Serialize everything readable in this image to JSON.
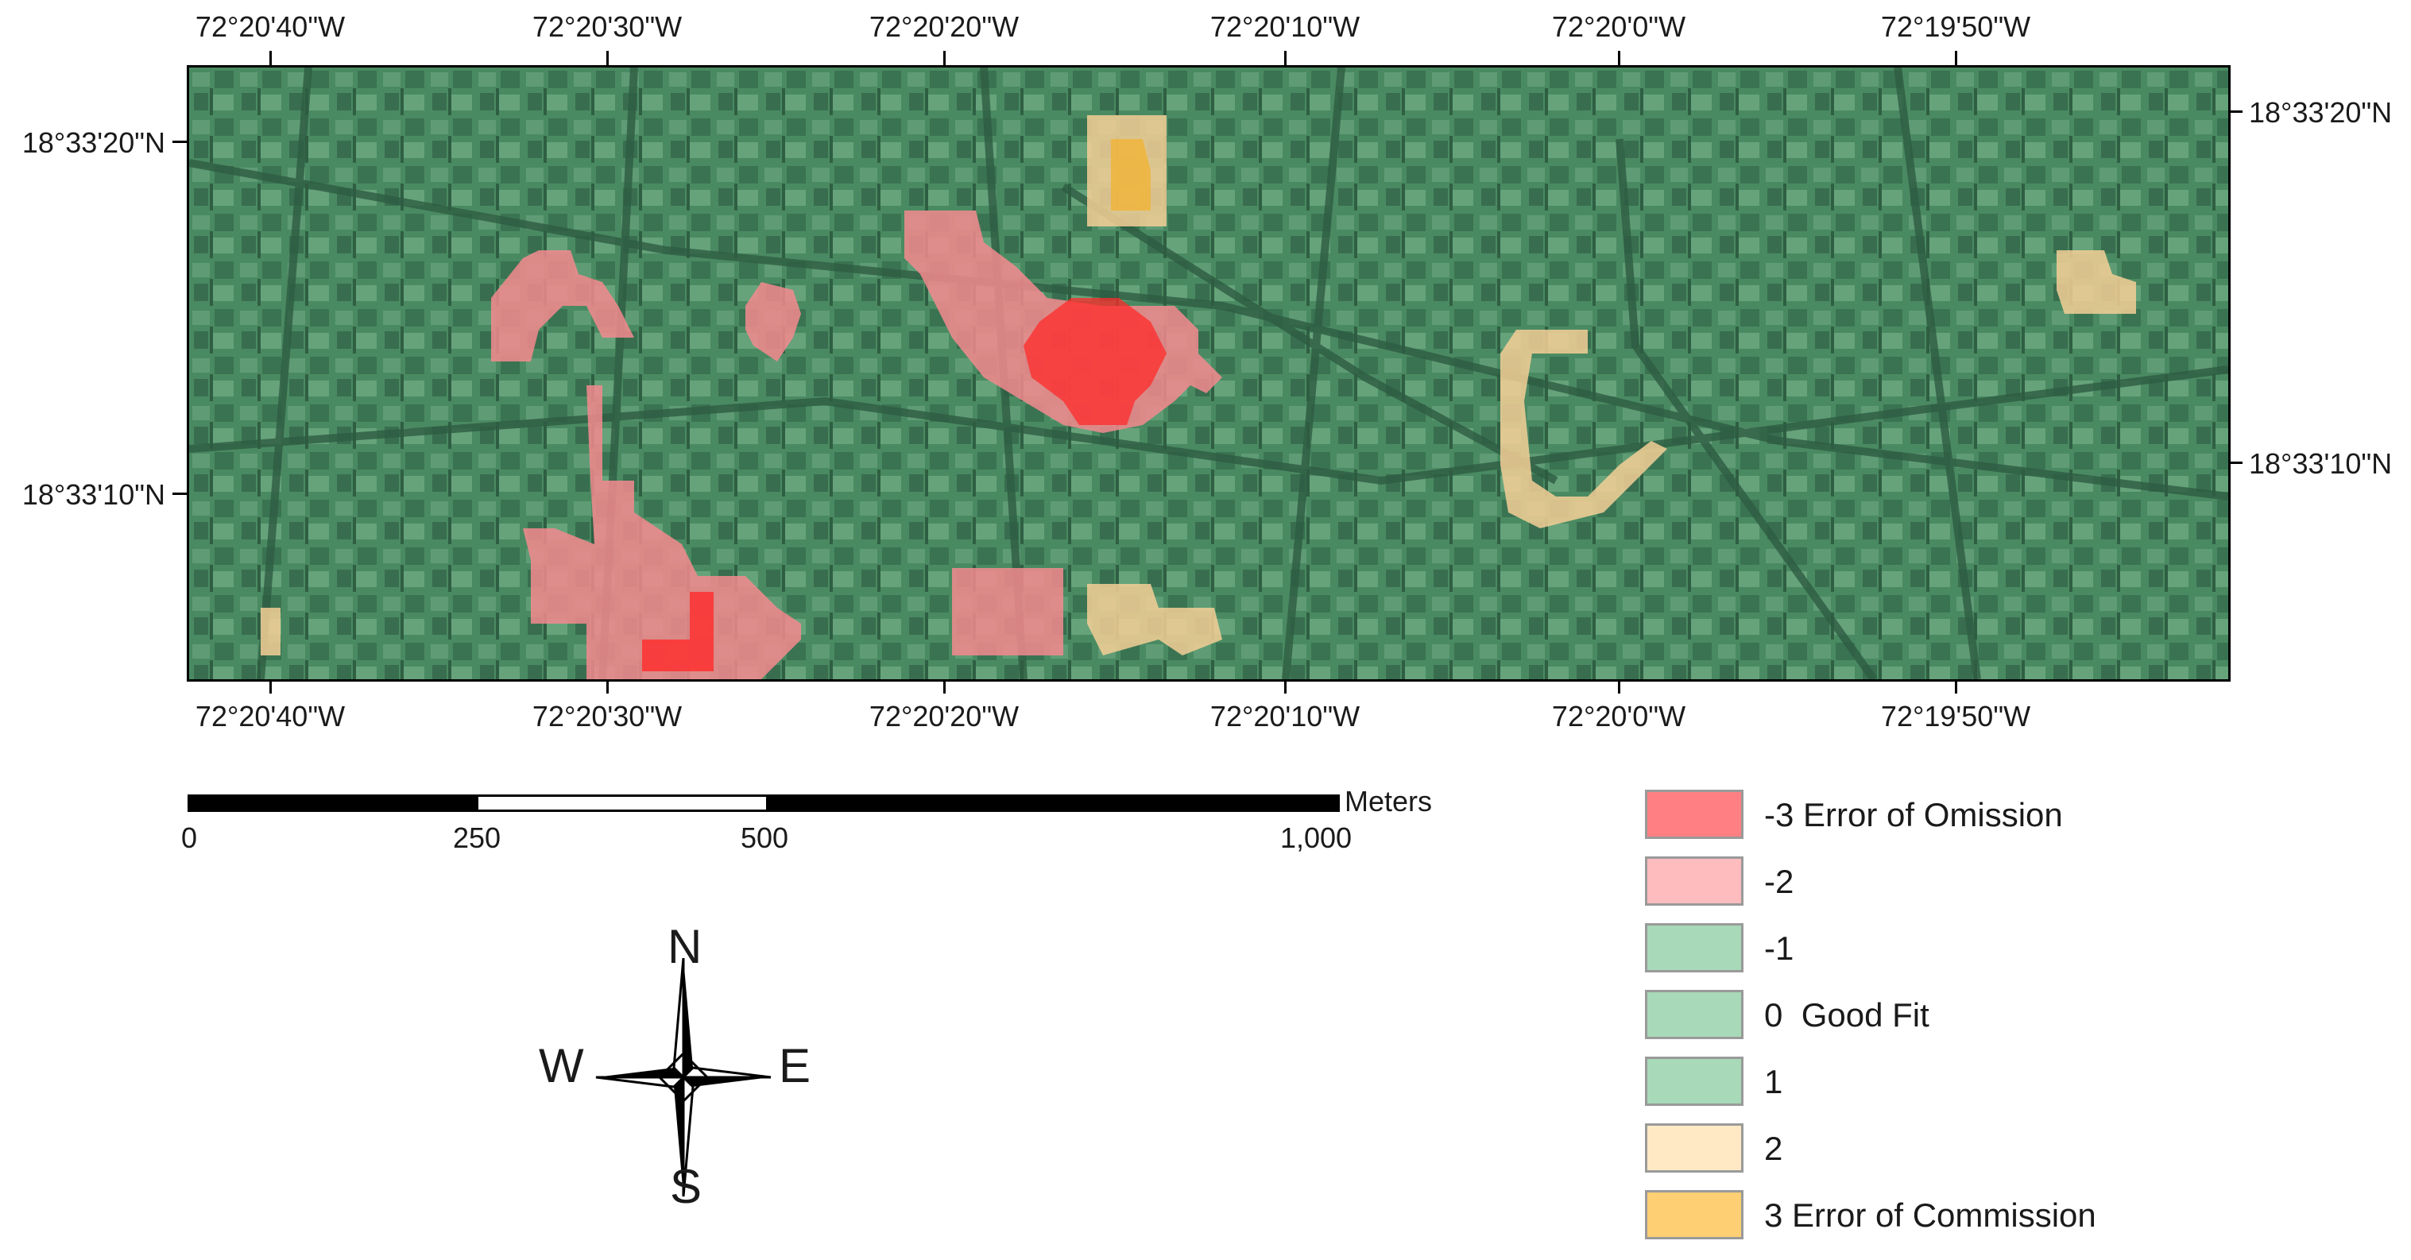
{
  "map": {
    "longitude_labels": [
      "72°20'40\"W",
      "72°20'30\"W",
      "72°20'20\"W",
      "72°20'10\"W",
      "72°20'0\"W",
      "72°19'50\"W"
    ],
    "latitude_labels": [
      "18°33'20\"N",
      "18°33'10\"N"
    ],
    "basemap": "satellite-imagery",
    "overlay_colors": {
      "minus3": "#ff2a2a",
      "minus2": "#f48a8f",
      "zero": "#3f8a5e",
      "plus2": "#f5cf96",
      "plus3": "#f0b43c"
    }
  },
  "scale_bar": {
    "labels": [
      "0",
      "250",
      "500",
      "1,000"
    ],
    "unit": "Meters"
  },
  "north_arrow": {
    "n": "N",
    "s": "S",
    "e": "E",
    "w": "W",
    "icon": "compass-rose-icon"
  },
  "legend": {
    "items": [
      {
        "label": "-3 Error of Omission",
        "color": "#ff7f83"
      },
      {
        "label": "-2",
        "color": "#ffbcbe"
      },
      {
        "label": "-1",
        "color": "#a8d9b8"
      },
      {
        "label": "0  Good Fit",
        "color": "#a8d9b8"
      },
      {
        "label": "1",
        "color": "#a8d9b8"
      },
      {
        "label": "2",
        "color": "#ffe9c4"
      },
      {
        "label": "3 Error of Commission",
        "color": "#ffcf73"
      }
    ]
  }
}
